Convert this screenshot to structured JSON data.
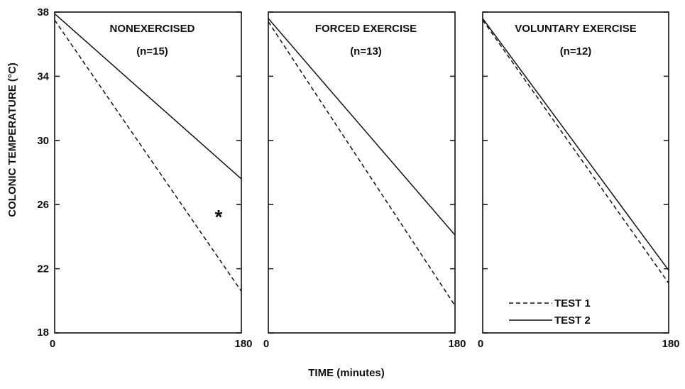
{
  "chart_data": [
    {
      "type": "line",
      "title": "NONEXERCISED",
      "subtitle": "(n=15)",
      "x": [
        0,
        180
      ],
      "xticks": [
        "0",
        "180"
      ],
      "yticks": [
        "18",
        "22",
        "26",
        "30",
        "34",
        "38"
      ],
      "ylim": [
        18,
        38
      ],
      "xlim": [
        0,
        180
      ],
      "series": [
        {
          "name": "TEST 1",
          "style": "dashed",
          "values": [
            37.5,
            20.6
          ]
        },
        {
          "name": "TEST 2",
          "style": "solid",
          "values": [
            37.9,
            27.6
          ]
        }
      ],
      "annotation": "*"
    },
    {
      "type": "line",
      "title": "FORCED EXERCISE",
      "subtitle": "(n=13)",
      "x": [
        0,
        180
      ],
      "xticks": [
        "0",
        "180"
      ],
      "ylim": [
        18,
        38
      ],
      "xlim": [
        0,
        180
      ],
      "series": [
        {
          "name": "TEST 1",
          "style": "dashed",
          "values": [
            37.4,
            19.7
          ]
        },
        {
          "name": "TEST 2",
          "style": "solid",
          "values": [
            37.6,
            24.1
          ]
        }
      ]
    },
    {
      "type": "line",
      "title": "VOLUNTARY EXERCISE",
      "subtitle": "(n=12)",
      "x": [
        0,
        180
      ],
      "xticks": [
        "0",
        "180"
      ],
      "ylim": [
        18,
        38
      ],
      "xlim": [
        0,
        180
      ],
      "series": [
        {
          "name": "TEST 1",
          "style": "dashed",
          "values": [
            37.5,
            21.1
          ]
        },
        {
          "name": "TEST 2",
          "style": "solid",
          "values": [
            37.6,
            21.9
          ]
        }
      ],
      "legend": [
        "TEST 1",
        "TEST 2"
      ],
      "legend_position": "bottom-right"
    }
  ],
  "ylabel": "COLONIC TEMPERATURE (°C)",
  "xlabel": "TIME (minutes)"
}
